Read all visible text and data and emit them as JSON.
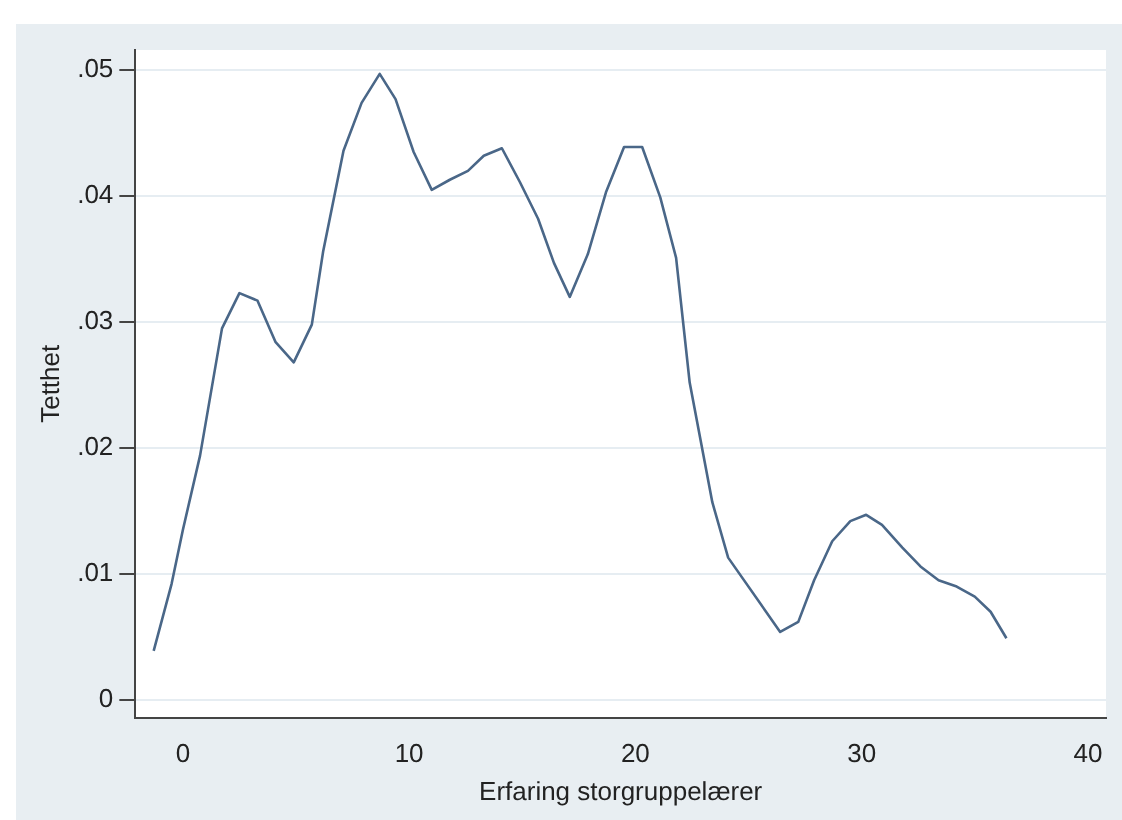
{
  "chart_data": {
    "type": "line",
    "xlabel": "Erfaring storgruppelærer",
    "ylabel": "Tetthet",
    "x": [
      -1.29,
      -0.5,
      0,
      0.76,
      1.73,
      2.5,
      3.3,
      4.1,
      4.9,
      5.7,
      6.2,
      7.1,
      7.9,
      8.7,
      9.4,
      10.2,
      11.0,
      11.8,
      12.6,
      13.3,
      14.1,
      14.9,
      15.7,
      16.4,
      17.1,
      17.9,
      18.7,
      19.5,
      20.3,
      21.1,
      21.8,
      22.4,
      23.4,
      24.1,
      26.4,
      27.2,
      27.9,
      28.7,
      29.5,
      30.2,
      30.9,
      31.8,
      32.6,
      33.4,
      34.2,
      35.0,
      35.7,
      36.4
    ],
    "series": [
      {
        "color": "#4a6788",
        "values": [
          0.0039,
          0.0092,
          0.0135,
          0.0194,
          0.0295,
          0.0323,
          0.0317,
          0.0284,
          0.0268,
          0.0298,
          0.0356,
          0.0436,
          0.0474,
          0.0497,
          0.0477,
          0.0435,
          0.0405,
          0.0413,
          0.042,
          0.0432,
          0.0438,
          0.0411,
          0.0382,
          0.0347,
          0.032,
          0.0354,
          0.0403,
          0.0439,
          0.0439,
          0.0399,
          0.0351,
          0.0252,
          0.0157,
          0.0113,
          0.0054,
          0.0062,
          0.0095,
          0.0126,
          0.0142,
          0.0147,
          0.0139,
          0.0121,
          0.0106,
          0.0095,
          0.009,
          0.0082,
          0.007,
          0.0049
        ]
      }
    ],
    "xlim": [
      -2.1,
      40.8
    ],
    "xticks": [
      0,
      10,
      20,
      30,
      40
    ],
    "ylim": [
      -0.0014,
      0.0516
    ],
    "yticks": [
      0,
      {
        "value": 0.01,
        "label": ".01"
      },
      {
        "value": 0.02,
        "label": ".02"
      },
      {
        "value": 0.03,
        "label": ".03"
      },
      {
        "value": 0.04,
        "label": ".04"
      },
      {
        "value": 0.05,
        "label": ".05"
      }
    ],
    "grid": "y",
    "legend": false,
    "marker": "none",
    "line_style": "solid"
  }
}
